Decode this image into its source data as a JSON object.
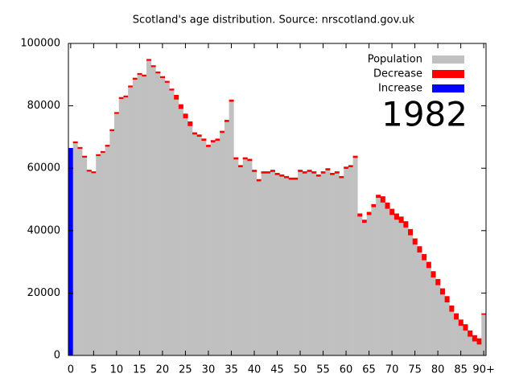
{
  "chart_data": {
    "type": "stacked_bar",
    "title": "Scotland's age distribution. Source: nrscotland.gov.uk",
    "annotation": "1982",
    "categories": [
      "0",
      null,
      null,
      null,
      null,
      "5",
      null,
      null,
      null,
      null,
      "10",
      null,
      null,
      null,
      null,
      "15",
      null,
      null,
      null,
      null,
      "20",
      null,
      null,
      null,
      null,
      "25",
      null,
      null,
      null,
      null,
      "30",
      null,
      null,
      null,
      null,
      "35",
      null,
      null,
      null,
      null,
      "40",
      null,
      null,
      null,
      null,
      "45",
      null,
      null,
      null,
      null,
      "50",
      null,
      null,
      null,
      null,
      "55",
      null,
      null,
      null,
      null,
      "60",
      null,
      null,
      null,
      null,
      "65",
      null,
      null,
      null,
      null,
      "70",
      null,
      null,
      null,
      null,
      "75",
      null,
      null,
      null,
      null,
      "80",
      null,
      null,
      null,
      null,
      "85",
      null,
      null,
      null,
      null,
      "90+"
    ],
    "series": [
      {
        "name": "Population",
        "color": "#c0c0c0",
        "values": [
          0,
          68000,
          66200,
          63400,
          58900,
          58400,
          63900,
          64900,
          66900,
          71900,
          77400,
          82200,
          82700,
          85900,
          88400,
          89900,
          89400,
          94400,
          92400,
          90400,
          88900,
          87400,
          84900,
          82000,
          79000,
          76000,
          73500,
          70800,
          70100,
          68800,
          66800,
          68300,
          68800,
          71300,
          74800,
          81300,
          62800,
          60300,
          62800,
          62300,
          58800,
          55800,
          58300,
          58300,
          58800,
          57800,
          57300,
          56800,
          56300,
          56300,
          58800,
          58300,
          58800,
          58300,
          57300,
          58300,
          59300,
          57800,
          58300,
          56800,
          59800,
          60300,
          63300,
          44500,
          42500,
          45000,
          47500,
          50500,
          49000,
          47000,
          45000,
          43500,
          42500,
          41000,
          38500,
          35500,
          33000,
          30500,
          28000,
          25000,
          22500,
          19500,
          17000,
          14000,
          11500,
          9500,
          8000,
          6000,
          4500,
          3500,
          13000
        ]
      },
      {
        "name": "Decrease",
        "color": "#ff0000",
        "values": [
          0,
          600,
          600,
          600,
          600,
          600,
          600,
          600,
          600,
          600,
          600,
          600,
          600,
          600,
          600,
          600,
          600,
          600,
          600,
          600,
          600,
          600,
          600,
          1500,
          1500,
          1500,
          1500,
          700,
          700,
          700,
          700,
          700,
          700,
          700,
          700,
          700,
          700,
          700,
          700,
          700,
          700,
          700,
          700,
          700,
          700,
          700,
          700,
          700,
          700,
          700,
          700,
          700,
          700,
          700,
          700,
          700,
          700,
          700,
          700,
          700,
          700,
          700,
          700,
          1000,
          1000,
          1000,
          1000,
          1000,
          2000,
          2000,
          2000,
          2000,
          2000,
          2000,
          2000,
          2000,
          2000,
          2000,
          2000,
          2000,
          2000,
          2000,
          2000,
          2000,
          2000,
          2000,
          2000,
          2000,
          2000,
          2000,
          500
        ]
      },
      {
        "name": "Increase",
        "color": "#0000ff",
        "values": [
          66500,
          0,
          0,
          0,
          0,
          0,
          0,
          0,
          0,
          0,
          0,
          0,
          0,
          0,
          0,
          0,
          0,
          0,
          0,
          0,
          0,
          0,
          0,
          0,
          0,
          0,
          0,
          0,
          0,
          0,
          0,
          0,
          0,
          0,
          0,
          0,
          0,
          0,
          0,
          0,
          0,
          0,
          0,
          0,
          0,
          0,
          0,
          0,
          0,
          0,
          0,
          0,
          0,
          0,
          0,
          0,
          0,
          0,
          0,
          0,
          0,
          0,
          0,
          0,
          0,
          0,
          0,
          0,
          0,
          0,
          0,
          0,
          0,
          0,
          0,
          0,
          0,
          0,
          0,
          0,
          0,
          0,
          0,
          0,
          0,
          0,
          0,
          0,
          0,
          0,
          0
        ]
      }
    ],
    "ylim": [
      0,
      100000
    ],
    "yticks": [
      0,
      20000,
      40000,
      60000,
      80000,
      100000
    ],
    "legend": "top-right",
    "grid": false
  }
}
